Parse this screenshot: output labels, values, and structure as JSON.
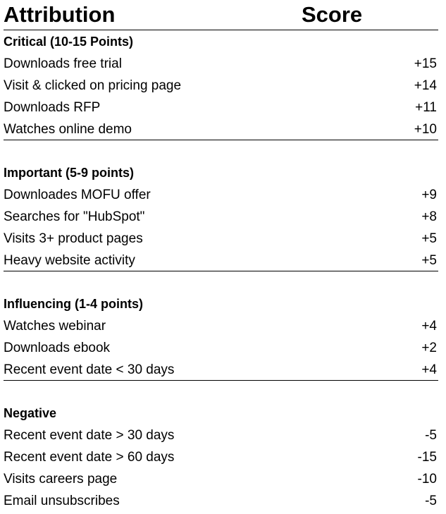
{
  "header": {
    "attribution": "Attribution",
    "score": "Score"
  },
  "sections": [
    {
      "title": "Critical (10-15 Points)",
      "ruled": true,
      "rows": [
        {
          "label": "Downloads free trial",
          "score": "+15"
        },
        {
          "label": "Visit & clicked on pricing page",
          "score": "+14"
        },
        {
          "label": "Downloads RFP",
          "score": "+11"
        },
        {
          "label": "Watches online demo",
          "score": "+10"
        }
      ]
    },
    {
      "title": "Important (5-9 points)",
      "ruled": true,
      "rows": [
        {
          "label": "Downloades MOFU offer",
          "score": "+9"
        },
        {
          "label": "Searches for \"HubSpot\"",
          "score": "+8"
        },
        {
          "label": "Visits 3+ product pages",
          "score": "+5"
        },
        {
          "label": "Heavy website activity",
          "score": "+5"
        }
      ]
    },
    {
      "title": "Influencing (1-4 points)",
      "ruled": true,
      "rows": [
        {
          "label": "Watches webinar",
          "score": "+4"
        },
        {
          "label": "Downloads ebook",
          "score": "+2"
        },
        {
          "label": "Recent event date < 30 days",
          "score": "+4"
        }
      ]
    },
    {
      "title": "Negative",
      "ruled": false,
      "rows": [
        {
          "label": "Recent event date > 30 days",
          "score": "-5"
        },
        {
          "label": "Recent event date > 60 days",
          "score": "-15"
        },
        {
          "label": "Visits careers page",
          "score": "-10"
        },
        {
          "label": "Email unsubscribes",
          "score": "-5"
        }
      ]
    }
  ]
}
